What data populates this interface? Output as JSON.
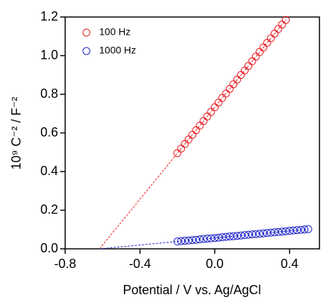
{
  "chart_data": {
    "type": "scatter",
    "xlabel": "Potential / V vs. Ag/AgCl",
    "ylabel": "10⁹ C⁻² / F⁻²",
    "xlim": [
      -0.8,
      0.56
    ],
    "ylim": [
      0,
      1.2
    ],
    "xticks": [
      -0.8,
      -0.4,
      {
        "value": 0,
        "label": "0.0"
      },
      0.4
    ],
    "yticks": [
      {
        "value": 0,
        "label": "0.0"
      },
      0.2,
      0.4,
      0.6,
      0.8,
      {
        "value": 1,
        "label": "1.0"
      },
      1.2
    ],
    "legend": "top-left",
    "series": [
      {
        "name": "100 Hz",
        "color": "#e8191e",
        "x": [
          -0.2,
          -0.18,
          -0.16,
          -0.14,
          -0.12,
          -0.1,
          -0.08,
          -0.06,
          -0.04,
          -0.02,
          0,
          0.02,
          0.04,
          0.06,
          0.08,
          0.1,
          0.12,
          0.14,
          0.16,
          0.18,
          0.2,
          0.22,
          0.24,
          0.26,
          0.28,
          0.3,
          0.32,
          0.34,
          0.36,
          0.38
        ],
        "values": [
          0.495,
          0.519,
          0.543,
          0.566,
          0.59,
          0.614,
          0.638,
          0.662,
          0.685,
          0.709,
          0.733,
          0.757,
          0.781,
          0.804,
          0.828,
          0.852,
          0.876,
          0.9,
          0.923,
          0.947,
          0.971,
          0.995,
          1.019,
          1.042,
          1.066,
          1.09,
          1.114,
          1.138,
          1.161,
          1.185
        ],
        "fit": {
          "x": [
            -0.616,
            0.38
          ],
          "values": [
            0,
            1.185
          ]
        }
      },
      {
        "name": "1000 Hz",
        "color": "#1c22c8",
        "x": [
          -0.2,
          -0.18,
          -0.16,
          -0.14,
          -0.12,
          -0.1,
          -0.08,
          -0.06,
          -0.04,
          -0.02,
          0,
          0.02,
          0.04,
          0.06,
          0.08,
          0.1,
          0.12,
          0.14,
          0.16,
          0.18,
          0.2,
          0.22,
          0.24,
          0.26,
          0.28,
          0.3,
          0.32,
          0.34,
          0.36,
          0.38,
          0.4,
          0.42,
          0.44,
          0.46,
          0.48,
          0.5
        ],
        "values": [
          0.038,
          0.04,
          0.042,
          0.043,
          0.045,
          0.047,
          0.049,
          0.051,
          0.053,
          0.054,
          0.056,
          0.058,
          0.06,
          0.062,
          0.064,
          0.065,
          0.067,
          0.069,
          0.071,
          0.073,
          0.075,
          0.076,
          0.078,
          0.08,
          0.082,
          0.084,
          0.086,
          0.087,
          0.089,
          0.091,
          0.093,
          0.095,
          0.097,
          0.098,
          0.1,
          0.102
        ],
        "fit": {
          "x": [
            -0.616,
            0.5
          ],
          "values": [
            0,
            0.102
          ]
        }
      }
    ]
  }
}
